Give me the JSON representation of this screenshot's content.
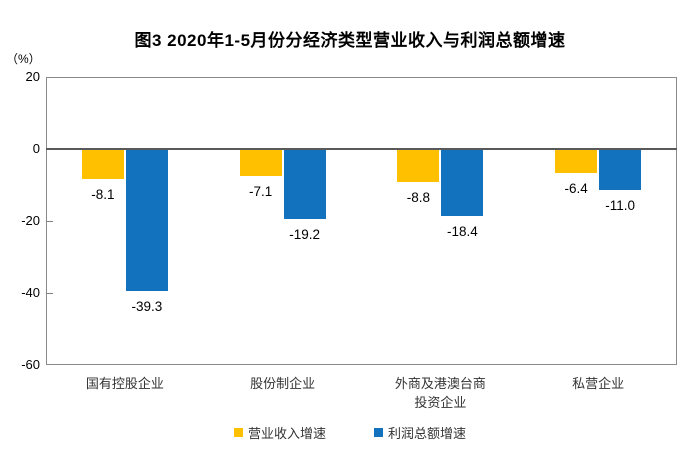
{
  "title": "图3 2020年1-5月份分经济类型营业收入与利润总额增速",
  "unit_label": "（%）",
  "colors": {
    "revenue_series": "#FFC000",
    "profit_series": "#1272BE",
    "zero_axis": "#595959",
    "plot_border": "#8a8a8a"
  },
  "chart_data": {
    "type": "bar",
    "title": "图3 2020年1-5月份分经济类型营业收入与利润总额增速",
    "ylabel": "（%）",
    "unit": "%",
    "categories": [
      "国有控股企业",
      "股份制企业",
      "外商及港澳台商投资企业",
      "私营企业"
    ],
    "category_lines": [
      [
        "国有控股企业"
      ],
      [
        "股份制企业"
      ],
      [
        "外商及港澳台商",
        "投资企业"
      ],
      [
        "私营企业"
      ]
    ],
    "series": [
      {
        "name": "营业收入增速",
        "color": "#FFC000",
        "values": [
          -8.1,
          -7.1,
          -8.8,
          -6.4
        ]
      },
      {
        "name": "利润总额增速",
        "color": "#1272BE",
        "values": [
          -39.3,
          -19.2,
          -18.4,
          -11.0
        ]
      }
    ],
    "y_ticks": [
      20,
      0,
      -20,
      -40,
      -60
    ],
    "ylim": [
      -60,
      20
    ],
    "grid": false,
    "data_labels": true,
    "legend_position": "bottom"
  }
}
